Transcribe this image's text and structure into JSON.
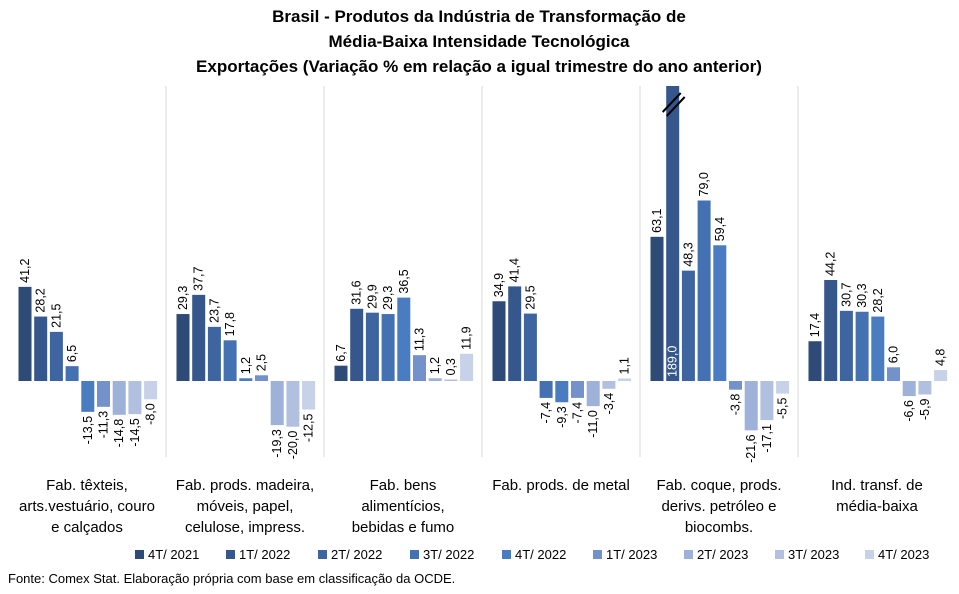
{
  "chart_data": {
    "type": "bar",
    "title": [
      "Brasil - Produtos da Indústria de Transformação de",
      "Média-Baixa Intensidade Tecnológica",
      "Exportações (Variação % em relação a igual trimestre do ano anterior)"
    ],
    "categories": [
      [
        "Fab. têxteis,",
        "arts.vestuário, couro",
        "e calçados"
      ],
      [
        "Fab. prods. madeira,",
        "móveis, papel,",
        "celulose, impress."
      ],
      [
        "Fab. bens",
        "alimentícios,",
        "bebidas e fumo"
      ],
      [
        "Fab. prods. de metal"
      ],
      [
        "Fab. coque, prods.",
        "derivs. petróleo e",
        "biocombs."
      ],
      [
        "Ind. transf. de",
        "média-baixa"
      ]
    ],
    "series": [
      {
        "name": "4T/ 2021",
        "color": "#2e4a76",
        "values": [
          41.2,
          29.3,
          6.7,
          34.9,
          63.1,
          17.4
        ],
        "labels": [
          "41,2",
          "29,3",
          "6,7",
          "34,9",
          "63,1",
          "17,4"
        ]
      },
      {
        "name": "1T/ 2022",
        "color": "#36578b",
        "values": [
          28.2,
          37.7,
          31.6,
          41.4,
          189.0,
          44.2
        ],
        "labels": [
          "28,2",
          "37,7",
          "31,6",
          "41,4",
          "189,0",
          "44,2"
        ]
      },
      {
        "name": "2T/ 2022",
        "color": "#3f65a1",
        "values": [
          21.5,
          23.7,
          29.9,
          29.5,
          48.3,
          30.7
        ],
        "labels": [
          "21,5",
          "23,7",
          "29,9",
          "29,5",
          "48,3",
          "30,7"
        ]
      },
      {
        "name": "3T/ 2022",
        "color": "#4471b1",
        "values": [
          6.5,
          17.8,
          29.3,
          -7.4,
          79.0,
          30.3
        ],
        "labels": [
          "6,5",
          "17,8",
          "29,3",
          "-7,4",
          "79,0",
          "30,3"
        ]
      },
      {
        "name": "4T/ 2022",
        "color": "#4a7cc2",
        "values": [
          -13.5,
          1.2,
          36.5,
          -9.3,
          59.4,
          28.2
        ],
        "labels": [
          "-13,5",
          "1,2",
          "36,5",
          "-9,3",
          "59,4",
          "28,2"
        ]
      },
      {
        "name": "1T/ 2023",
        "color": "#7392cb",
        "values": [
          -11.3,
          2.5,
          11.3,
          -7.4,
          -3.8,
          6.0
        ],
        "labels": [
          "-11,3",
          "2,5",
          "11,3",
          "-7,4",
          "-3,8",
          "6,0"
        ]
      },
      {
        "name": "2T/ 2023",
        "color": "#9eb1d8",
        "values": [
          -14.8,
          -19.3,
          1.2,
          -11.0,
          -21.6,
          -6.6
        ],
        "labels": [
          "-14,8",
          "-19,3",
          "1,2",
          "-11,0",
          "-21,6",
          "-6,6"
        ]
      },
      {
        "name": "3T/ 2023",
        "color": "#b2c0df",
        "values": [
          -14.5,
          -20.0,
          0.3,
          -3.4,
          -17.1,
          -5.9
        ],
        "labels": [
          "-14,5",
          "-20,0",
          "0,3",
          "-3,4",
          "-17,1",
          "-5,9"
        ]
      },
      {
        "name": "4T/ 2023",
        "color": "#c7d2e8",
        "values": [
          -8.0,
          -12.5,
          11.9,
          1.1,
          -5.5,
          4.8
        ],
        "labels": [
          "-8,0",
          "-12,5",
          "11,9",
          "1,1",
          "-5,5",
          "4,8"
        ]
      }
    ],
    "clipped_bar": {
      "series": 1,
      "category": 4,
      "label_inside": true
    },
    "grid": false,
    "legend": "bottom",
    "gridlines_between_groups": true
  },
  "source": "Fonte: Comex Stat. Elaboração própria com base em classificação da OCDE."
}
